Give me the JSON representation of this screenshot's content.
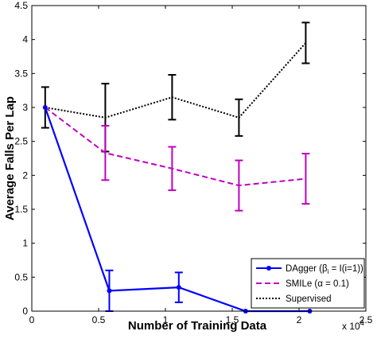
{
  "chart_data": {
    "type": "line",
    "title": "",
    "xlabel": "Number of Training Data",
    "ylabel": "Average Falls Per Lap",
    "x_multiplier_label": "x 10",
    "x_multiplier_exponent": "4",
    "xlim": [
      0,
      2.5
    ],
    "ylim": [
      0,
      4.5
    ],
    "x_ticks": [
      0,
      0.5,
      1,
      1.5,
      2,
      2.5
    ],
    "x_tick_labels": [
      "0",
      "0.5",
      "1",
      "1.5",
      "2",
      "2.5"
    ],
    "y_ticks": [
      0,
      0.5,
      1,
      1.5,
      2,
      2.5,
      3,
      3.5,
      4,
      4.5
    ],
    "y_tick_labels": [
      "0",
      "0.5",
      "1",
      "1.5",
      "2",
      "2.5",
      "3",
      "3.5",
      "4",
      "4.5"
    ],
    "grid": false,
    "legend_position": "bottom-right",
    "series": [
      {
        "name": "DAgger (βi = I(i=1))",
        "legend_main": "DAgger (β",
        "legend_sub": "i",
        "legend_tail": " = I(i=1))",
        "color": "#0000ff",
        "style": "solid-dots",
        "x": [
          0.1,
          0.58,
          1.1,
          1.6,
          2.08
        ],
        "y": [
          3.0,
          0.3,
          0.35,
          0.0,
          0.0
        ],
        "err": [
          null,
          0.3,
          0.22,
          null,
          null
        ]
      },
      {
        "name": "SMILe (α = 0.1)",
        "legend_main": "SMILe (α = 0.1)",
        "color": "#c000c0",
        "style": "dashed",
        "x": [
          0.1,
          0.55,
          1.05,
          1.55,
          2.05
        ],
        "y": [
          3.0,
          2.33,
          2.1,
          1.85,
          1.95
        ],
        "err": [
          null,
          0.4,
          0.32,
          0.37,
          0.37
        ]
      },
      {
        "name": "Supervised",
        "legend_main": "Supervised",
        "color": "#000000",
        "style": "dotted",
        "x": [
          0.1,
          0.55,
          1.05,
          1.55,
          2.05
        ],
        "y": [
          3.0,
          2.85,
          3.15,
          2.85,
          3.95
        ],
        "err": [
          0.3,
          0.5,
          0.33,
          0.27,
          0.3
        ]
      }
    ]
  }
}
